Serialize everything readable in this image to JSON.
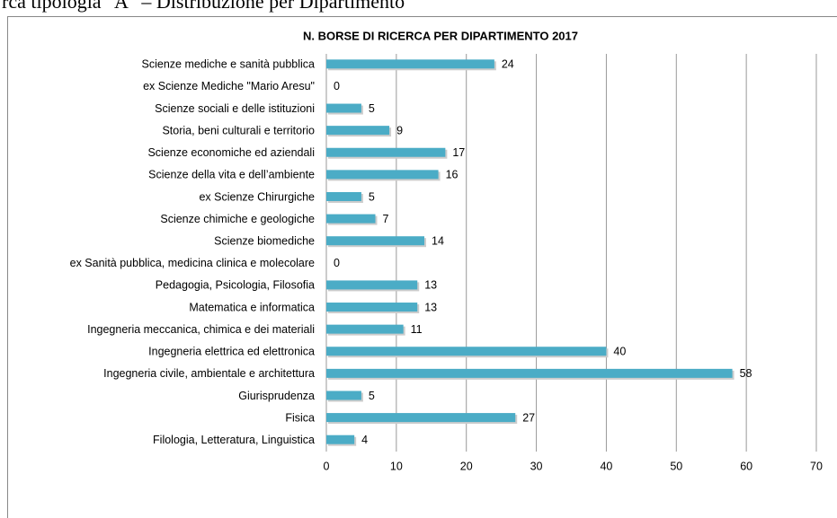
{
  "page_caption": "rca tipologia \"A\" – Distribuzione per Dipartimento",
  "chart_data": {
    "type": "hbar",
    "title": "N. BORSE DI RICERCA PER DIPARTIMENTO 2017",
    "categories": [
      "Scienze mediche e sanità pubblica",
      "ex Scienze Mediche \"Mario Aresu\"",
      "Scienze sociali e delle istituzioni",
      "Storia, beni culturali e territorio",
      "Scienze economiche ed aziendali",
      "Scienze della vita e dell’ambiente",
      "ex Scienze Chirurgiche",
      "Scienze chimiche e geologiche",
      "Scienze biomediche",
      "ex Sanità pubblica, medicina clinica e molecolare",
      "Pedagogia, Psicologia, Filosofia",
      "Matematica e informatica",
      "Ingegneria meccanica, chimica e dei materiali",
      "Ingegneria elettrica ed elettronica",
      "Ingegneria civile, ambientale e architettura",
      "Giurisprudenza",
      "Fisica",
      "Filologia, Letteratura, Linguistica"
    ],
    "values": [
      24,
      0,
      5,
      9,
      17,
      16,
      5,
      7,
      14,
      0,
      13,
      13,
      11,
      40,
      58,
      5,
      27,
      4
    ],
    "color": "#4bacc6",
    "xlim": [
      0,
      70
    ],
    "xticks": [
      0,
      10,
      20,
      30,
      40,
      50,
      60,
      70
    ],
    "grid": true
  }
}
